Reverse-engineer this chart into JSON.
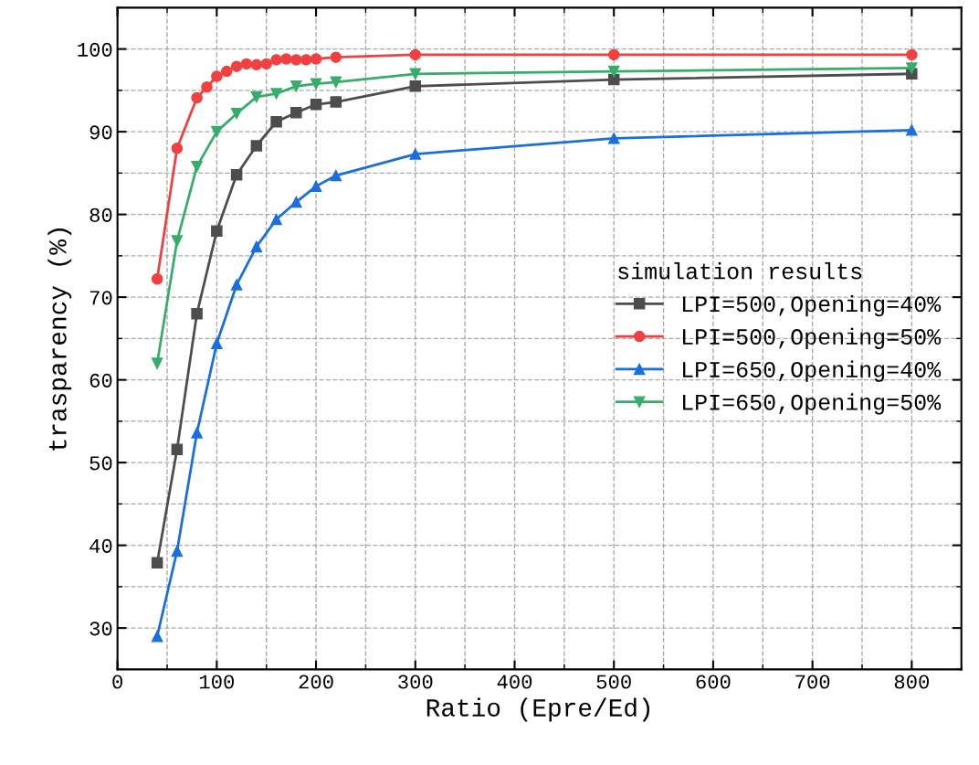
{
  "chart_data": {
    "type": "line",
    "xlabel": "Ratio (Epre/Ed)",
    "ylabel": "trasparency (%)",
    "legend_title": "simulation results",
    "legend": "center right",
    "grid": true,
    "line_style": "solid",
    "xlim": [
      0,
      850
    ],
    "xticks": [
      0,
      100,
      200,
      300,
      400,
      500,
      600,
      700,
      800
    ],
    "ylim": [
      25,
      105
    ],
    "yticks": [
      30,
      40,
      50,
      60,
      70,
      80,
      90,
      100
    ],
    "series": [
      {
        "name": "LPI=500,Opening=40%",
        "color": "#4d4d4d",
        "marker": "square",
        "x": [
          40,
          60,
          80,
          100,
          120,
          140,
          160,
          180,
          200,
          220,
          300,
          500,
          800
        ],
        "values": [
          37.9,
          51.6,
          68.0,
          78.0,
          84.8,
          88.3,
          91.2,
          92.3,
          93.3,
          93.6,
          95.5,
          96.3,
          97.0
        ]
      },
      {
        "name": "LPI=500,Opening=50%",
        "color": "#f14040",
        "marker": "circle",
        "x": [
          40,
          60,
          80,
          90,
          100,
          110,
          120,
          130,
          140,
          150,
          160,
          170,
          180,
          190,
          200,
          220,
          300,
          500,
          800
        ],
        "values": [
          72.2,
          88.0,
          94.1,
          95.4,
          96.7,
          97.3,
          97.9,
          98.2,
          98.1,
          98.2,
          98.7,
          98.8,
          98.7,
          98.7,
          98.8,
          99.0,
          99.3,
          99.3,
          99.3
        ]
      },
      {
        "name": "LPI=650,Opening=40%",
        "color": "#1a6fdf",
        "marker": "triangle",
        "x": [
          40,
          60,
          80,
          100,
          120,
          140,
          160,
          180,
          200,
          220,
          300,
          500,
          800
        ],
        "values": [
          29.0,
          39.3,
          53.6,
          64.4,
          71.5,
          76.1,
          79.4,
          81.5,
          83.4,
          84.7,
          87.3,
          89.2,
          90.2
        ]
      },
      {
        "name": "LPI=650,Opening=50%",
        "color": "#37ad6b",
        "marker": "triangle_down",
        "x": [
          40,
          60,
          80,
          100,
          120,
          140,
          160,
          180,
          200,
          220,
          300,
          500,
          800
        ],
        "values": [
          62.0,
          76.8,
          85.8,
          90.0,
          92.2,
          94.2,
          94.6,
          95.5,
          95.8,
          96.0,
          97.0,
          97.3,
          97.7
        ]
      }
    ]
  }
}
